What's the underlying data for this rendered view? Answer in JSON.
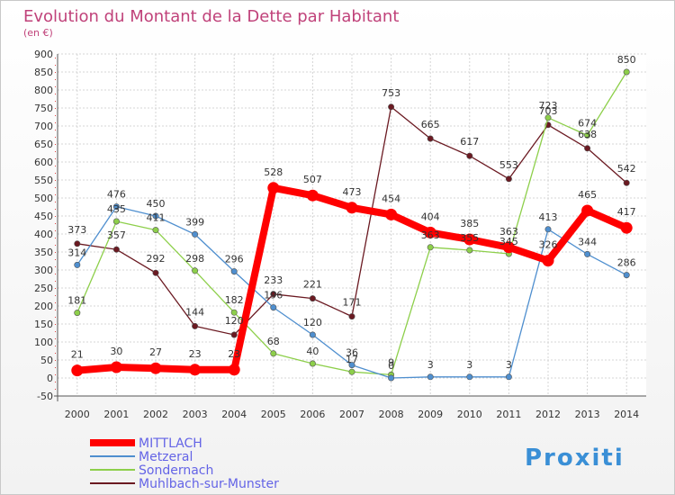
{
  "chart_data": {
    "type": "line",
    "title": "Evolution du Montant de la Dette par Habitant",
    "subtitle": "(en €)",
    "x": [
      "2000",
      "2001",
      "2002",
      "2003",
      "2004",
      "2005",
      "2006",
      "2007",
      "2008",
      "2009",
      "2010",
      "2011",
      "2012",
      "2013",
      "2014"
    ],
    "ylim": [
      -50,
      900
    ],
    "yticks": [
      -50,
      0,
      50,
      100,
      150,
      200,
      250,
      300,
      350,
      400,
      450,
      500,
      550,
      600,
      650,
      700,
      750,
      800,
      850,
      900
    ],
    "grid": true,
    "legend_position": "bottom-left",
    "series": [
      {
        "name": "Muhlbach-sur-Munster",
        "color": "#6b1a22",
        "thick": false,
        "values": [
          373,
          357,
          292,
          144,
          120,
          233,
          221,
          171,
          753,
          665,
          617,
          553,
          703,
          638,
          542
        ]
      },
      {
        "name": "Sondernach",
        "color": "#8dcf4a",
        "thick": false,
        "values": [
          181,
          435,
          411,
          298,
          182,
          68,
          40,
          17,
          9,
          363,
          355,
          345,
          723,
          674,
          850
        ]
      },
      {
        "name": "Metzeral",
        "color": "#4f8fcf",
        "thick": false,
        "values": [
          314,
          476,
          450,
          399,
          296,
          196,
          120,
          36,
          0,
          3,
          3,
          3,
          413,
          344,
          286
        ]
      },
      {
        "name": "MITTLACH",
        "color": "#ff0000",
        "thick": true,
        "values": [
          21,
          30,
          27,
          23,
          23,
          528,
          507,
          473,
          454,
          404,
          385,
          363,
          326,
          465,
          417
        ]
      }
    ],
    "data_labels": [
      {
        "series": "Muhlbach-sur-Munster",
        "values": [
          "373",
          "357",
          "292",
          "144",
          "120",
          "233",
          "221",
          "171",
          "753",
          "665",
          "617",
          "553",
          "703",
          "638",
          "542"
        ]
      },
      {
        "series": "Sondernach",
        "values": [
          "181",
          "435",
          "411",
          "298",
          "182",
          "68",
          "40",
          "17",
          "9",
          "363",
          "355",
          "345",
          "723",
          "674",
          "850"
        ]
      },
      {
        "series": "Metzeral",
        "values": [
          "314",
          "476",
          "450",
          "399",
          "296",
          "196",
          "120",
          "36",
          "0",
          "3",
          "3",
          "3",
          "413",
          "344",
          "286"
        ]
      },
      {
        "series": "MITTLACH",
        "values": [
          "21",
          "30",
          "27",
          "23",
          "23",
          "528",
          "507",
          "473",
          "454",
          "404",
          "385",
          "363",
          "326",
          "465",
          "417"
        ]
      }
    ],
    "legend_order": [
      "MITTLACH",
      "Metzeral",
      "Sondernach",
      "Muhlbach-sur-Munster"
    ]
  },
  "branding": {
    "logo_text": "Proxiti"
  }
}
